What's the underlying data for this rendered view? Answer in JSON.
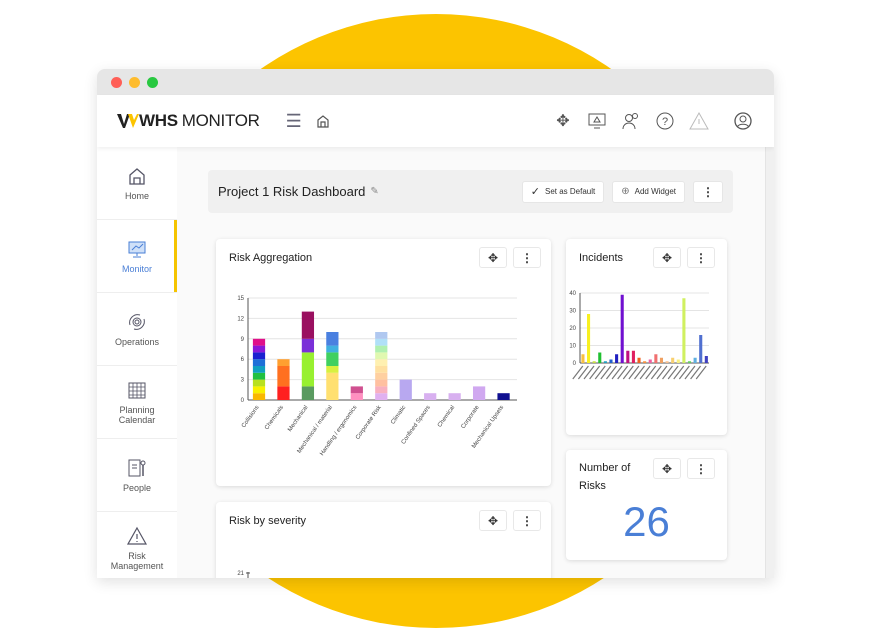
{
  "app": {
    "logo": "WHS",
    "logo_rest": "MONITOR"
  },
  "header_icons": [
    "move-icon",
    "monitor-alert-icon",
    "user-settings-icon",
    "help-icon",
    "warning-icon",
    "account-icon"
  ],
  "sidebar": {
    "items": [
      {
        "label": "Home",
        "icon": "home-icon"
      },
      {
        "label": "Monitor",
        "icon": "monitor-icon",
        "active": true
      },
      {
        "label": "Operations",
        "icon": "operations-icon"
      },
      {
        "label": "Planning Calendar",
        "icon": "calendar-icon"
      },
      {
        "label": "People",
        "icon": "people-icon"
      },
      {
        "label": "Risk Management",
        "icon": "warning-icon"
      }
    ]
  },
  "dashboard": {
    "title": "Project 1 Risk Dashboard",
    "set_default": "Set as Default",
    "add_widget": "Add Widget"
  },
  "widgets": {
    "risk_aggregation": "Risk Aggregation",
    "incidents": "Incidents",
    "number_of_risks": "Number of Risks",
    "risk_by_severity": "Risk by severity"
  },
  "number_of_risks_value": "26",
  "accent": "#4a7fd6",
  "brand_yellow": "#fcc400",
  "chart_data": [
    {
      "type": "bar",
      "stacked": true,
      "title": "Risk Aggregation",
      "ylim": [
        0,
        15
      ],
      "yticks": [
        0,
        3,
        6,
        9,
        12,
        15
      ],
      "grid": true,
      "categories": [
        "Collisions",
        "Chemicals",
        "Mechanical",
        "Mechanical / material",
        "Handling / ergonomics",
        "Corporate Risk",
        "Climatic",
        "Confined Spaces",
        "Chemical",
        "Corporate",
        "Mechanical Upsets"
      ],
      "stacks": [
        [
          [
            1,
            "#f9b800"
          ],
          [
            1,
            "#f8f000"
          ],
          [
            1,
            "#b8e020"
          ],
          [
            1,
            "#20c040"
          ],
          [
            1,
            "#10a0c0"
          ],
          [
            1,
            "#1e70d8"
          ],
          [
            1,
            "#1a20d0"
          ],
          [
            1,
            "#8a18d8"
          ],
          [
            1,
            "#e0108a"
          ]
        ],
        [
          [
            2,
            "#ff2020"
          ],
          [
            3,
            "#ff7020"
          ],
          [
            1,
            "#ffa030"
          ]
        ],
        [
          [
            2,
            "#5a9a60"
          ],
          [
            5,
            "#98f030"
          ],
          [
            2,
            "#7a30d8"
          ],
          [
            4,
            "#9a1060"
          ]
        ],
        [
          [
            4,
            "#ffe070"
          ],
          [
            1,
            "#d8f040"
          ],
          [
            2,
            "#40d060"
          ],
          [
            1,
            "#40b0e0"
          ],
          [
            2,
            "#4a80e0"
          ]
        ],
        [
          [
            1,
            "#ff90c0"
          ],
          [
            1,
            "#d05090"
          ]
        ],
        [
          [
            1,
            "#e0b0f0"
          ],
          [
            1,
            "#f8b0c0"
          ],
          [
            1,
            "#ffc0a0"
          ],
          [
            1,
            "#ffd0a0"
          ],
          [
            1,
            "#ffe0a0"
          ],
          [
            1,
            "#fff0b0"
          ],
          [
            1,
            "#e0f8b0"
          ],
          [
            1,
            "#b0f0b0"
          ],
          [
            1,
            "#b0e0f8"
          ],
          [
            1,
            "#b0c8f0"
          ]
        ],
        [
          [
            3,
            "#b8a8f0"
          ]
        ],
        [
          [
            1,
            "#d8b0f0"
          ]
        ],
        [
          [
            1,
            "#d8b0f0"
          ]
        ],
        [
          [
            2,
            "#d0a8f0"
          ]
        ],
        [
          [
            1,
            "#101090"
          ]
        ]
      ]
    },
    {
      "type": "bar",
      "title": "Incidents",
      "ylim": [
        0,
        40
      ],
      "yticks": [
        0,
        10,
        20,
        30,
        40
      ],
      "grid": true,
      "values": [
        5,
        28,
        1,
        6,
        1,
        2,
        5,
        39,
        7,
        7,
        3,
        1,
        2,
        5,
        3,
        1,
        3,
        2,
        37,
        1,
        3,
        16,
        4
      ],
      "colors": [
        "#f8c040",
        "#f8f020",
        "#c8e040",
        "#20c030",
        "#20a0c0",
        "#2060d0",
        "#2020c0",
        "#7010d0",
        "#c01080",
        "#e02060",
        "#f06020",
        "#f89040",
        "#f060a0",
        "#f07070",
        "#f0a060",
        "#f8c090",
        "#f8d070",
        "#f8f080",
        "#d0f060",
        "#60d060",
        "#60b0e0",
        "#5070d0",
        "#4040c0"
      ]
    },
    {
      "type": "bar",
      "title": "Risk by severity",
      "yticks": [
        21
      ]
    }
  ]
}
